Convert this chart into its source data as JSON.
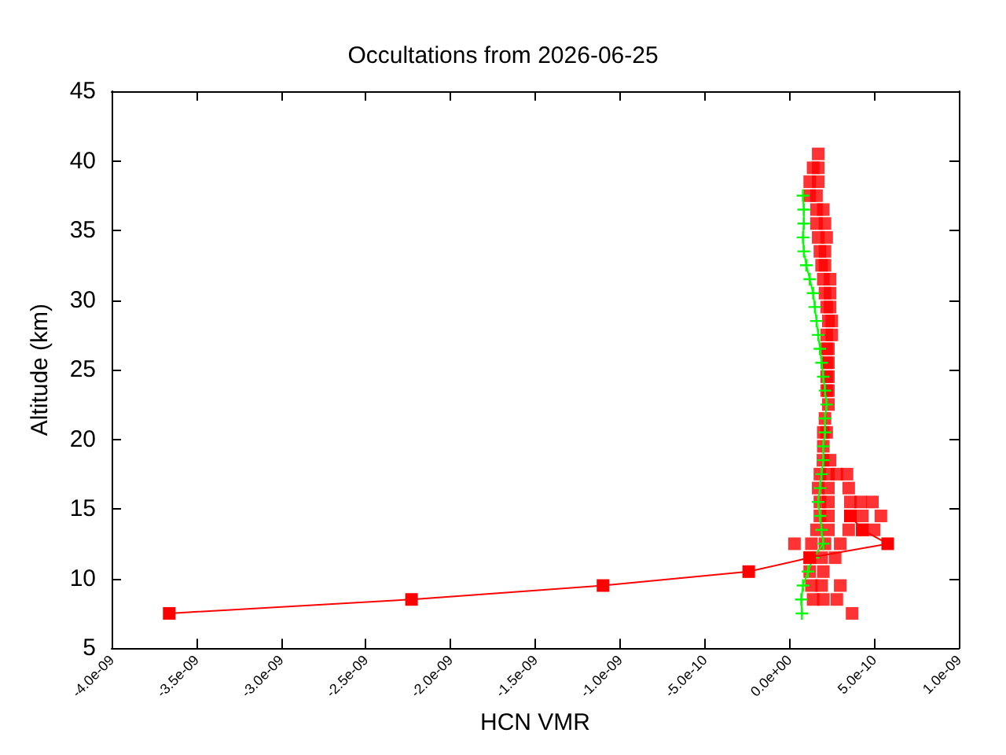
{
  "chart_data": {
    "type": "line",
    "title": "Occultations from 2026-06-25",
    "xlabel": "HCN VMR",
    "ylabel": "Altitude (km)",
    "xlim": [
      -4e-09,
      1e-09
    ],
    "xticks": [
      {
        "value": -4e-09,
        "label": "-4.0e-09"
      },
      {
        "value": -3.5e-09,
        "label": "-3.5e-09"
      },
      {
        "value": -3e-09,
        "label": "-3.0e-09"
      },
      {
        "value": -2.5e-09,
        "label": "-2.5e-09"
      },
      {
        "value": -2e-09,
        "label": "-2.0e-09"
      },
      {
        "value": -1.5e-09,
        "label": "-1.5e-09"
      },
      {
        "value": -1e-09,
        "label": "-1.0e-09"
      },
      {
        "value": -5e-10,
        "label": "-5.0e-10"
      },
      {
        "value": 0,
        "label": "0.0e+00"
      },
      {
        "value": 5e-10,
        "label": "5.0e-10"
      },
      {
        "value": 1e-09,
        "label": "1.0e-09"
      }
    ],
    "ylim": [
      5,
      45
    ],
    "yticks": [
      5,
      10,
      15,
      20,
      25,
      30,
      35,
      40,
      45
    ],
    "grid": false,
    "series": [
      {
        "color": "#00ff00",
        "marker": "cross",
        "x": [
          7.4e-11,
          7e-11,
          8e-11,
          1.1e-10,
          1.4e-10,
          2e-10,
          1.9e-10,
          1.8e-10,
          1.7e-10,
          1.8e-10,
          1.9e-10,
          2e-10,
          2e-10,
          2.1e-10,
          2.1e-10,
          2.2e-10,
          2.1e-10,
          2e-10,
          1.9e-10,
          1.8e-10,
          1.7e-10,
          1.6e-10,
          1.5e-10,
          1.4e-10,
          1.2e-10,
          1e-10,
          8.5e-11,
          8e-11,
          8.5e-11,
          8.5e-11,
          8e-11
        ],
        "values": [
          7.5,
          8.5,
          9.5,
          10.5,
          11.5,
          12.5,
          13.5,
          14.5,
          15.5,
          16.5,
          17.5,
          18.5,
          19.5,
          20.5,
          21.5,
          22.5,
          23.5,
          24.5,
          25.5,
          26.5,
          27.5,
          28.5,
          29.5,
          30.5,
          31.5,
          32.5,
          33.5,
          34.5,
          35.5,
          36.5,
          37.5
        ]
      },
      {
        "type": "scatter",
        "color": "#ff0000",
        "marker": "square",
        "x": [
          3.7e-10,
          1.4e-10,
          2e-10,
          2.8e-10,
          1.3e-10,
          1.9e-10,
          3e-10,
          1.2e-10,
          2e-10,
          1.2e-10,
          1.9e-10,
          2.7e-10,
          3e-11,
          1.3e-10,
          2.1e-10,
          3e-10,
          1.6e-10,
          2.3e-10,
          3.5e-10,
          4.3e-10,
          5e-10,
          1.8e-10,
          2.3e-10,
          3.6e-10,
          4.3e-10,
          5.4e-10,
          1.8e-10,
          2.3e-10,
          3.6e-10,
          4.2e-10,
          4.9e-10,
          1.7e-10,
          2.3e-10,
          3.5e-10,
          1.8e-10,
          2.3e-10,
          2.8e-10,
          3.4e-10,
          1.98e-10,
          2.4e-10,
          2e-10,
          2e-10,
          2.2e-10,
          2.1e-10,
          2.3e-10,
          2.2e-10,
          2.3e-10,
          2.2e-10,
          2.3e-10,
          2.2e-10,
          2.3e-10,
          2.2e-10,
          2.3e-10,
          2.2e-10,
          2.5e-10,
          2.3e-10,
          2.5e-10,
          2.2e-10,
          2.4e-10,
          2.1e-10,
          2.4e-10,
          2e-10,
          2.4e-10,
          1.9e-10,
          2.1e-10,
          1.8e-10,
          2.1e-10,
          1.7e-10,
          2.2e-10,
          1.6e-10,
          2.1e-10,
          1.6e-10,
          2e-10,
          1.2e-10,
          1.6e-10,
          1.2e-10,
          1.7e-10,
          1.4e-10,
          1.7e-10,
          1.7e-10
        ],
        "values": [
          7.5,
          8.5,
          8.5,
          8.5,
          9.5,
          9.5,
          9.5,
          10.5,
          10.5,
          11.5,
          11.5,
          11.5,
          12.5,
          12.5,
          12.5,
          12.5,
          13.5,
          13.5,
          13.5,
          13.5,
          13.5,
          14.5,
          14.5,
          14.5,
          14.5,
          14.5,
          15.5,
          15.5,
          15.5,
          15.5,
          15.5,
          16.5,
          16.5,
          16.5,
          17.5,
          17.5,
          17.5,
          17.5,
          18.5,
          18.5,
          19.5,
          20.5,
          20.5,
          21.5,
          22.5,
          23.5,
          23.5,
          24.5,
          24.5,
          25.5,
          25.5,
          26.5,
          26.5,
          27.5,
          27.5,
          28.5,
          28.5,
          29.5,
          29.5,
          30.5,
          30.5,
          31.5,
          31.5,
          32.5,
          32.5,
          33.5,
          33.5,
          34.5,
          34.5,
          35.5,
          35.5,
          36.5,
          36.5,
          37.5,
          37.5,
          38.5,
          38.5,
          39.5,
          39.5,
          40.5
        ]
      },
      {
        "color": "#ff0000",
        "marker": "square",
        "x": [
          -3.66e-09,
          -2.23e-09,
          -1.1e-09,
          -2.4e-10,
          1.2e-10,
          5.8e-10,
          4.3e-10,
          3.6e-10
        ],
        "values": [
          7.5,
          8.5,
          9.5,
          10.5,
          11.5,
          12.5,
          13.5,
          14.5
        ]
      }
    ]
  }
}
